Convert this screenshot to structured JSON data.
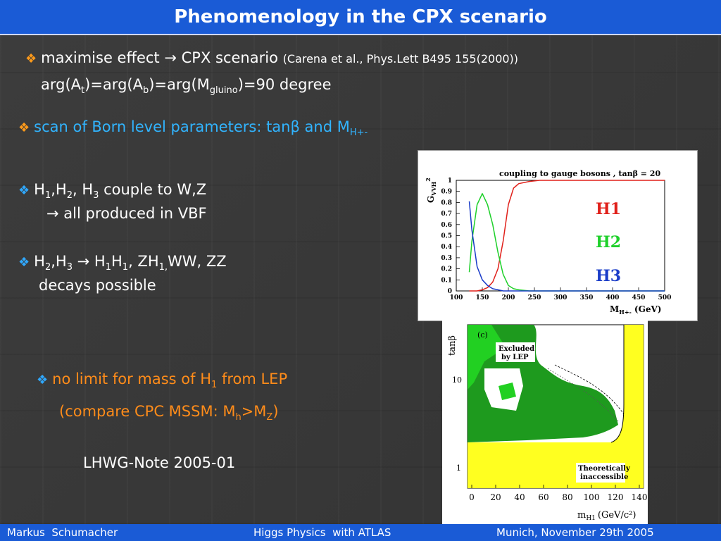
{
  "slide": {
    "title": "Phenomenology in the CPX scenario"
  },
  "bullets": {
    "b1_main": "maximise effect",
    "b1_arrow": "→",
    "b1_scenario": "CPX scenario",
    "b1_ref": "(Carena et al., Phys.Lett B495 155(2000))",
    "b1_line2_a": "arg(A",
    "b1_line2_sub1": "t",
    "b1_line2_b": ")=arg(A",
    "b1_line2_sub2": "b",
    "b1_line2_c": ")=arg(M",
    "b1_line2_sub3": "gluino",
    "b1_line2_d": ")=90 degree",
    "b2_text": "scan of Born level parameters: tanβ and M",
    "b2_sub": "H+-",
    "b3_line1_a": "H",
    "b3_line1_s1": "1",
    "b3_line1_b": ",H",
    "b3_line1_s2": "2",
    "b3_line1_c": ", H",
    "b3_line1_s3": "3",
    "b3_line1_d": " couple to W,Z",
    "b3_line2": "→ all produced in VBF",
    "b4_line1_a": "H",
    "b4_line1_s1": "2",
    "b4_line1_b": ",H",
    "b4_line1_s2": "3",
    "b4_line1_c": " → H",
    "b4_line1_s3": "1",
    "b4_line1_d": "H",
    "b4_line1_s4": "1",
    "b4_line1_e": ", ZH",
    "b4_line1_s5": "1,",
    "b4_line1_f": "WW, ZZ",
    "b4_line2": "decays possible",
    "b5_line1_a": "no limit for mass of H",
    "b5_line1_sub": "1",
    "b5_line1_b": " from LEP",
    "b5_line2_a": "(compare CPC MSSM: M",
    "b5_line2_s1": "h",
    "b5_line2_b": ">M",
    "b5_line2_s2": "Z",
    "b5_line2_c": ")",
    "note": "LHWG-Note 2005-01"
  },
  "plot_top": {
    "title": "coupling to gauge bosons , tanβ = 20",
    "ylabel": "G",
    "ylabel_sub": "VVH",
    "ylabel_sup": "2",
    "xlabel": "M",
    "xlabel_sub": "H+-",
    "xlabel_unit": "(GeV)",
    "legend": [
      "H1",
      "H2",
      "H3"
    ],
    "legend_colors": [
      "#e0201a",
      "#1ed02a",
      "#1a3cc8"
    ],
    "x_ticks": [
      "100",
      "150",
      "200",
      "250",
      "300",
      "350",
      "400",
      "450",
      "500"
    ],
    "y_ticks": [
      "0",
      "0.1",
      "0.2",
      "0.3",
      "0.4",
      "0.5",
      "0.6",
      "0.7",
      "0.8",
      "0.9",
      "1"
    ]
  },
  "plot_bottom": {
    "panel": "(c)",
    "ylabel": "tanβ",
    "xlabel": "m",
    "xlabel_sub": "H1",
    "xlabel_unit": "(GeV/c²)",
    "label_excluded_1": "Excluded",
    "label_excluded_2": "by LEP",
    "label_theory_1": "Theoretically",
    "label_theory_2": "inaccessible",
    "x_ticks": [
      "0",
      "20",
      "40",
      "60",
      "80",
      "100",
      "120",
      "140"
    ],
    "y_ticks": [
      "10",
      "1"
    ],
    "colors": {
      "excluded_dark": "#1e9a1e",
      "excluded_light": "#22d022",
      "inaccessible": "#ffff20"
    }
  },
  "chart_data": {
    "type": "line",
    "title": "coupling to gauge bosons , tanβ = 20",
    "xlabel": "M H+- (GeV)",
    "ylabel": "G VVH 2",
    "xlim": [
      100,
      500
    ],
    "ylim": [
      0,
      1
    ],
    "x": [
      125,
      130,
      140,
      150,
      160,
      170,
      180,
      190,
      200,
      210,
      220,
      240,
      260,
      300,
      400,
      500
    ],
    "series": [
      {
        "name": "H1",
        "values": [
          0.0,
          0.0,
          0.0,
          0.01,
          0.03,
          0.08,
          0.2,
          0.45,
          0.78,
          0.93,
          0.97,
          0.99,
          1.0,
          1.0,
          1.0,
          1.0
        ]
      },
      {
        "name": "H2",
        "values": [
          0.17,
          0.45,
          0.78,
          0.88,
          0.78,
          0.6,
          0.35,
          0.15,
          0.05,
          0.02,
          0.01,
          0.0,
          0.0,
          0.0,
          0.0,
          0.0
        ]
      },
      {
        "name": "H3",
        "values": [
          0.81,
          0.55,
          0.22,
          0.1,
          0.05,
          0.02,
          0.01,
          0.0,
          0.0,
          0.0,
          0.0,
          0.0,
          0.0,
          0.0,
          0.0,
          0.0
        ]
      }
    ]
  }
}
